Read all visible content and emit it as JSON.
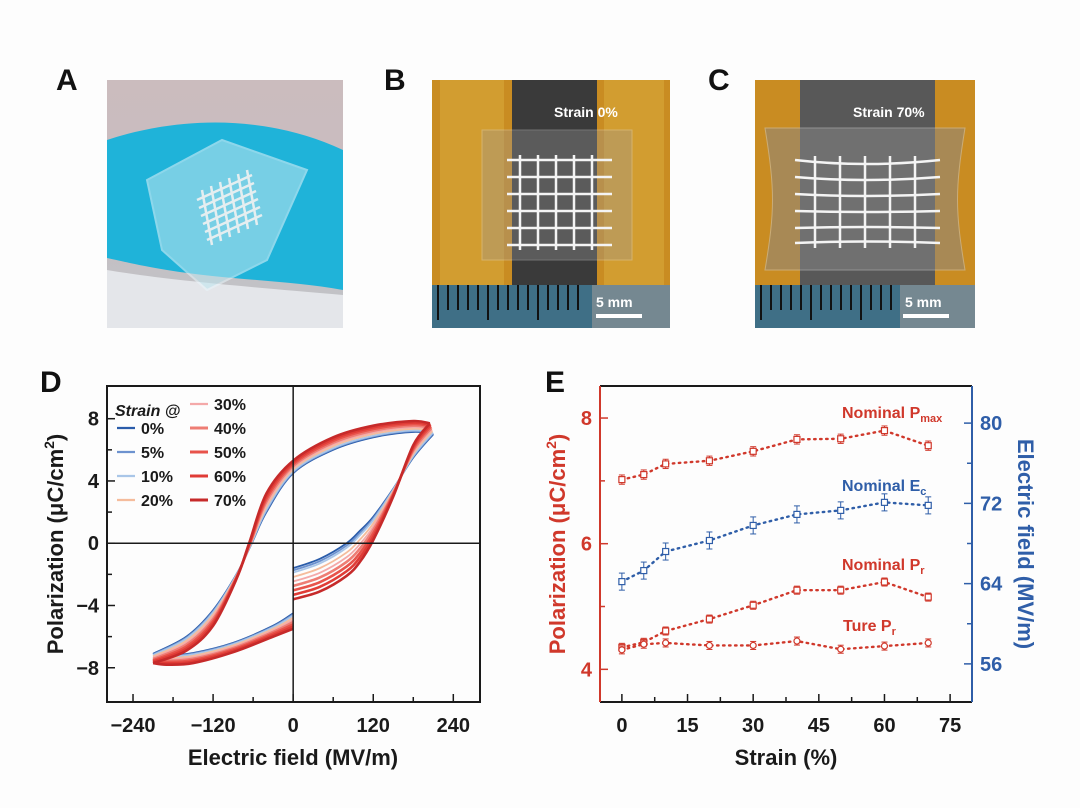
{
  "panels": {
    "a": "A",
    "b": "B",
    "c": "C",
    "d": "D",
    "e": "E"
  },
  "photo_b": {
    "strain_label": "Strain 0%",
    "scale_label": "5 mm"
  },
  "photo_c": {
    "strain_label": "Strain 70%",
    "scale_label": "5 mm"
  },
  "chart_data": [
    {
      "type": "line",
      "panel": "D",
      "title": "",
      "xlabel": "Electric field (MV/m)",
      "ylabel": {
        "main": "Polarization (μC/cm",
        "sup": "2",
        "end": ")"
      },
      "xlim": [
        -279,
        280
      ],
      "ylim": [
        -10.2,
        10.1
      ],
      "xticks": [
        "−240",
        "−120",
        "0",
        "120",
        "240"
      ],
      "xtick_values": [
        -240,
        -120,
        0,
        120,
        240
      ],
      "yticks": [
        "8",
        "4",
        "0",
        "−4",
        "−8"
      ],
      "ytick_values": [
        8,
        4,
        0,
        -4,
        -8
      ],
      "legend_title": "Strain @",
      "legend_placement": "top-left",
      "series": [
        {
          "name": "0%",
          "strain": 0,
          "color": "#2a5caa"
        },
        {
          "name": "5%",
          "strain": 5,
          "color": "#6d92cf"
        },
        {
          "name": "10%",
          "strain": 10,
          "color": "#a9c6e8"
        },
        {
          "name": "20%",
          "strain": 20,
          "color": "#f5bc9c"
        },
        {
          "name": "30%",
          "strain": 30,
          "color": "#f4a9a9"
        },
        {
          "name": "40%",
          "strain": 40,
          "color": "#ee7d74"
        },
        {
          "name": "50%",
          "strain": 50,
          "color": "#e8534b"
        },
        {
          "name": "60%",
          "strain": 60,
          "color": "#e03c36"
        },
        {
          "name": "70%",
          "strain": 70,
          "color": "#c62a2a"
        }
      ],
      "loop_0pct": {
        "descending": {
          "E": [
            210,
            180,
            120,
            60,
            0,
            -40,
            -62,
            -85,
            -120,
            -160,
            -210
          ],
          "P": [
            7.0,
            7.15,
            6.8,
            6.0,
            4.5,
            2.0,
            0,
            -2.0,
            -4.3,
            -6.0,
            -7.1
          ]
        },
        "ascending_neg": {
          "E": [
            -210,
            -190,
            -150,
            -90,
            -30,
            0
          ],
          "P": [
            -7.1,
            -7.2,
            -7.05,
            -6.4,
            -5.3,
            -4.5
          ]
        },
        "ascending_pos": {
          "E": [
            0,
            40,
            80,
            100,
            120,
            150,
            180,
            210
          ],
          "P": [
            -1.6,
            -1.0,
            0,
            0.8,
            1.7,
            3.5,
            5.5,
            7.0
          ]
        }
      },
      "loop_70pct": {
        "descending": {
          "E": [
            205,
            180,
            120,
            60,
            0,
            -40,
            -66,
            -85,
            -120,
            -160,
            -210
          ],
          "P": [
            7.7,
            7.85,
            7.55,
            6.8,
            5.3,
            3.2,
            0,
            -2.3,
            -5.3,
            -6.9,
            -7.7
          ]
        },
        "ascending_neg": {
          "E": [
            -210,
            -190,
            -150,
            -90,
            -30,
            0
          ],
          "P": [
            -7.7,
            -7.8,
            -7.7,
            -7.0,
            -6.0,
            -5.5
          ]
        },
        "ascending_pos": {
          "E": [
            0,
            40,
            80,
            100,
            120,
            150,
            180,
            205
          ],
          "P": [
            -3.6,
            -3.1,
            -2.1,
            -1.2,
            0.2,
            3.0,
            6.3,
            7.7
          ]
        }
      }
    },
    {
      "type": "line",
      "panel": "E",
      "title": "",
      "xlabel": "Strain (%)",
      "ylabel_left": {
        "main": "Polarization (μC/cm",
        "sup": "2",
        "end": ")"
      },
      "ylabel_right": "Electric field (MV/m)",
      "xlim": [
        -5,
        80
      ],
      "ylim_left": [
        3.48,
        8.51
      ],
      "ylim_right": [
        52.2,
        83.7
      ],
      "xticks": [
        "0",
        "15",
        "30",
        "45",
        "60",
        "75"
      ],
      "xtick_values": [
        0,
        15,
        30,
        45,
        60,
        75
      ],
      "yticks_left": [
        "4",
        "6",
        "8"
      ],
      "ytick_left_values": [
        4,
        6,
        8
      ],
      "yticks_right": [
        "56",
        "64",
        "72",
        "80"
      ],
      "ytick_right_values": [
        56,
        64,
        72,
        80
      ],
      "left_color": "#d0382b",
      "right_color": "#2f5ea8",
      "x": [
        0,
        5,
        10,
        20,
        30,
        40,
        50,
        60,
        70
      ],
      "series": [
        {
          "name": "Nominal P",
          "sub": "max",
          "axis": "left",
          "color": "#d0382b",
          "values": [
            7.02,
            7.1,
            7.27,
            7.32,
            7.47,
            7.66,
            7.67,
            7.8,
            7.56
          ],
          "error": 0.05
        },
        {
          "name": "Nominal E",
          "sub": "c",
          "axis": "right",
          "color": "#2f5ea8",
          "values": [
            64.2,
            65.3,
            67.2,
            68.3,
            69.8,
            70.9,
            71.3,
            72.1,
            71.8
          ],
          "error": 0.7
        },
        {
          "name": "Nominal P",
          "sub": "r",
          "axis": "left",
          "color": "#d0382b",
          "values": [
            4.35,
            4.43,
            4.61,
            4.8,
            5.02,
            5.26,
            5.26,
            5.39,
            5.15
          ],
          "error": 0.04
        },
        {
          "name": "Ture P",
          "sub": "r",
          "axis": "left",
          "color": "#d0382b",
          "values": [
            4.31,
            4.4,
            4.42,
            4.38,
            4.38,
            4.45,
            4.32,
            4.37,
            4.42
          ],
          "error": 0.04
        }
      ]
    }
  ]
}
